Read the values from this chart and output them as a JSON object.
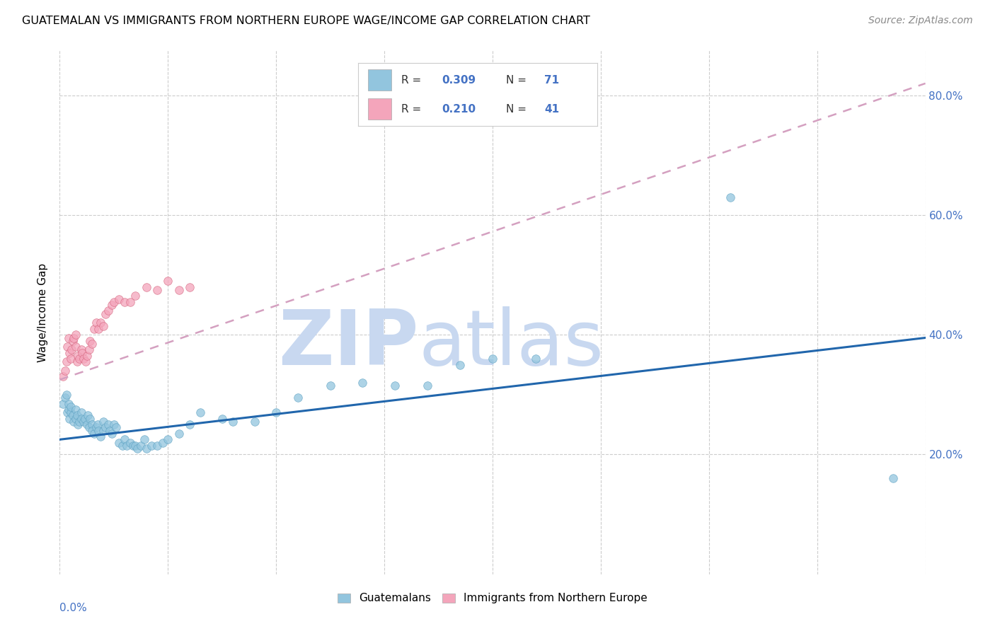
{
  "title": "GUATEMALAN VS IMMIGRANTS FROM NORTHERN EUROPE WAGE/INCOME GAP CORRELATION CHART",
  "source": "Source: ZipAtlas.com",
  "ylabel": "Wage/Income Gap",
  "ytick_vals": [
    0.2,
    0.4,
    0.6,
    0.8
  ],
  "xlim": [
    0.0,
    0.8
  ],
  "ylim": [
    0.0,
    0.875
  ],
  "blue_color": "#92c5de",
  "pink_color": "#f4a5bb",
  "trend_blue": "#2166ac",
  "trend_pink": "#c994c7",
  "trend_pink_dash": "#d4a0c0",
  "watermark_zip_color": "#c8d8f0",
  "watermark_atlas_color": "#c8d8f0",
  "guatemalan_x": [
    0.003,
    0.005,
    0.006,
    0.007,
    0.008,
    0.008,
    0.009,
    0.01,
    0.01,
    0.012,
    0.013,
    0.015,
    0.015,
    0.016,
    0.017,
    0.018,
    0.02,
    0.02,
    0.022,
    0.023,
    0.025,
    0.026,
    0.027,
    0.028,
    0.03,
    0.03,
    0.032,
    0.034,
    0.035,
    0.036,
    0.038,
    0.04,
    0.04,
    0.042,
    0.045,
    0.046,
    0.048,
    0.05,
    0.052,
    0.055,
    0.058,
    0.06,
    0.062,
    0.065,
    0.068,
    0.07,
    0.072,
    0.075,
    0.078,
    0.08,
    0.085,
    0.09,
    0.095,
    0.1,
    0.11,
    0.12,
    0.13,
    0.15,
    0.16,
    0.18,
    0.2,
    0.22,
    0.25,
    0.28,
    0.31,
    0.34,
    0.37,
    0.4,
    0.44,
    0.62,
    0.77
  ],
  "guatemalan_y": [
    0.285,
    0.295,
    0.3,
    0.27,
    0.275,
    0.285,
    0.26,
    0.27,
    0.28,
    0.265,
    0.255,
    0.26,
    0.275,
    0.265,
    0.25,
    0.255,
    0.27,
    0.26,
    0.255,
    0.26,
    0.25,
    0.265,
    0.245,
    0.26,
    0.25,
    0.24,
    0.235,
    0.245,
    0.25,
    0.24,
    0.23,
    0.24,
    0.255,
    0.245,
    0.25,
    0.24,
    0.235,
    0.25,
    0.245,
    0.22,
    0.215,
    0.225,
    0.215,
    0.22,
    0.215,
    0.215,
    0.21,
    0.215,
    0.225,
    0.21,
    0.215,
    0.215,
    0.22,
    0.225,
    0.235,
    0.25,
    0.27,
    0.26,
    0.255,
    0.255,
    0.27,
    0.295,
    0.315,
    0.32,
    0.315,
    0.315,
    0.35,
    0.36,
    0.36,
    0.63,
    0.16
  ],
  "northern_europe_x": [
    0.003,
    0.005,
    0.006,
    0.007,
    0.008,
    0.009,
    0.01,
    0.011,
    0.012,
    0.013,
    0.015,
    0.015,
    0.016,
    0.017,
    0.018,
    0.02,
    0.021,
    0.022,
    0.024,
    0.025,
    0.027,
    0.028,
    0.03,
    0.032,
    0.034,
    0.036,
    0.038,
    0.04,
    0.042,
    0.045,
    0.048,
    0.05,
    0.055,
    0.06,
    0.065,
    0.07,
    0.08,
    0.09,
    0.1,
    0.11,
    0.12
  ],
  "northern_europe_y": [
    0.33,
    0.34,
    0.355,
    0.38,
    0.395,
    0.37,
    0.36,
    0.375,
    0.39,
    0.395,
    0.4,
    0.38,
    0.355,
    0.365,
    0.36,
    0.375,
    0.37,
    0.36,
    0.355,
    0.365,
    0.375,
    0.39,
    0.385,
    0.41,
    0.42,
    0.41,
    0.42,
    0.415,
    0.435,
    0.44,
    0.45,
    0.455,
    0.46,
    0.455,
    0.455,
    0.465,
    0.48,
    0.475,
    0.49,
    0.475,
    0.48
  ],
  "blue_trend_x0": 0.0,
  "blue_trend_y0": 0.225,
  "blue_trend_x1": 0.8,
  "blue_trend_y1": 0.395,
  "pink_trend_x0": 0.0,
  "pink_trend_y0": 0.325,
  "pink_trend_x1": 0.8,
  "pink_trend_y1": 0.82
}
